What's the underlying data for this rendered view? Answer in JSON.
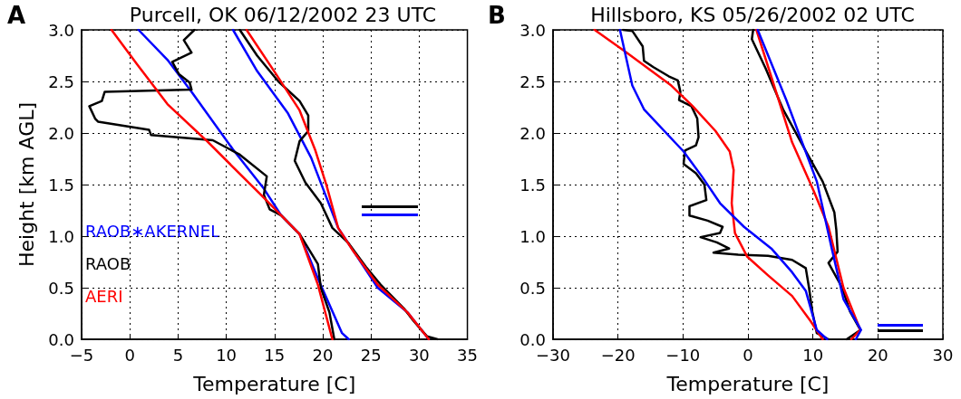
{
  "chart_data": [
    {
      "type": "line",
      "title": "Purcell, OK 06/12/2002 23 UTC",
      "xlabel": "Temperature [C]",
      "ylabel": "Height [km AGL]",
      "annotations": [
        "A"
      ],
      "xlim": [
        -5,
        35
      ],
      "xticks": [
        {
          "value": -5,
          "label": "−5"
        },
        0,
        5,
        10,
        15,
        20,
        25,
        30,
        35
      ],
      "ylim": [
        0,
        3
      ],
      "yticks": [
        {
          "value": 0,
          "label": "0.0"
        },
        0.5,
        {
          "value": 1,
          "label": "1.0"
        },
        1.5,
        {
          "value": 2,
          "label": "2.0"
        },
        2.5,
        {
          "value": 3,
          "label": "3.0"
        }
      ],
      "grid": true,
      "legend": "left",
      "marker": "none",
      "line_style": "solid",
      "series": [
        {
          "name": "RAOB∗AKERNEL",
          "color": "#0000ff",
          "x": [
            10.7,
            13.2,
            16.4,
            18.8,
            21.6,
            25.7,
            28.8,
            31.0
          ],
          "values": [
            3.0,
            2.6,
            2.19,
            1.76,
            1.08,
            0.5,
            0.26,
            0.0
          ]
        },
        {
          "color": "#0000ff",
          "x": [
            0.9,
            3.9,
            6.4,
            10.7,
            13.9,
            15.7,
            17.6,
            19.5,
            22.0,
            22.7
          ],
          "values": [
            3.0,
            2.71,
            2.4,
            1.84,
            1.46,
            1.2,
            1.02,
            0.59,
            0.06,
            0.0
          ]
        },
        {
          "name": "RAOB",
          "color": "#000000",
          "x": [
            11.4,
            13.2,
            15.4,
            17.6,
            18.5,
            18.5,
            17.6,
            17.1,
            18.2,
            19.8,
            21.0,
            22.6,
            24.5,
            26.0,
            28.5,
            29.4,
            30.8,
            31.9
          ],
          "values": [
            3.0,
            2.75,
            2.5,
            2.31,
            2.17,
            2.02,
            1.92,
            1.73,
            1.52,
            1.32,
            1.08,
            0.94,
            0.7,
            0.53,
            0.29,
            0.18,
            0.03,
            0.0
          ]
        },
        {
          "color": "#000000",
          "x": [
            6.7,
            5.6,
            6.4,
            4.4,
            5.1,
            6.2,
            6.4,
            -2.6,
            -2.9,
            -4.2,
            -3.6,
            -3.3,
            2.0,
            2.2,
            8.6,
            11.4,
            14.2,
            13.9,
            14.5,
            15.7,
            17.6,
            19.5,
            19.8,
            20.7,
            21.2
          ],
          "values": [
            3.0,
            2.9,
            2.78,
            2.69,
            2.57,
            2.49,
            2.42,
            2.4,
            2.31,
            2.26,
            2.14,
            2.11,
            2.03,
            1.98,
            1.93,
            1.79,
            1.58,
            1.4,
            1.26,
            1.2,
            1.02,
            0.73,
            0.5,
            0.26,
            0.0
          ]
        },
        {
          "name": "AERI",
          "color": "#ff0000",
          "x": [
            12.1,
            15.1,
            17.6,
            19.2,
            20.4,
            21.6,
            23.2,
            25.7,
            28.8,
            31.0
          ],
          "values": [
            3.0,
            2.58,
            2.22,
            1.84,
            1.49,
            1.08,
            0.85,
            0.53,
            0.26,
            0.0
          ]
        },
        {
          "color": "#ff0000",
          "x": [
            -1.9,
            0.8,
            3.9,
            7.9,
            13.6,
            15.7,
            17.6,
            19.5,
            21.0
          ],
          "values": [
            3.0,
            2.66,
            2.28,
            1.93,
            1.4,
            1.2,
            1.02,
            0.53,
            0.0
          ]
        }
      ]
    },
    {
      "type": "line",
      "title": "Hillsboro, KS 05/26/2002 02 UTC",
      "xlabel": "Temperature [C]",
      "annotations": [
        "B"
      ],
      "xlim": [
        -30,
        30
      ],
      "xticks": [
        {
          "value": -30,
          "label": "−30"
        },
        {
          "value": -20,
          "label": "−20"
        },
        {
          "value": -10,
          "label": "−10"
        },
        0,
        10,
        20,
        30
      ],
      "ylim": [
        0,
        3
      ],
      "yticks": [
        {
          "value": 0,
          "label": "0.0"
        },
        0.5,
        {
          "value": 1,
          "label": "1.0"
        },
        1.5,
        {
          "value": 2,
          "label": "2.0"
        },
        2.5,
        {
          "value": 3,
          "label": "3.0"
        }
      ],
      "grid": true,
      "marker": "none",
      "line_style": "solid",
      "series": [
        {
          "color": "#000000",
          "x": [
            -19.2,
            -17.8,
            -16.2,
            -16.0,
            -14.6,
            -12.2,
            -10.8,
            -10.4,
            -10.6,
            -8.7,
            -7.8,
            -7.6,
            -8.0,
            -9.7,
            -9.9,
            -8.0,
            -6.7,
            -6.4,
            -9.0,
            -9.0,
            -6.2,
            -3.9,
            -4.3,
            -7.3,
            -4.8,
            -2.9,
            -5.3,
            -1.5,
            3.1,
            6.8,
            8.9,
            9.4,
            9.9,
            10.6,
            12.4
          ],
          "values": [
            3.0,
            2.99,
            2.84,
            2.7,
            2.64,
            2.55,
            2.51,
            2.4,
            2.32,
            2.26,
            2.14,
            1.96,
            1.88,
            1.83,
            1.7,
            1.61,
            1.5,
            1.35,
            1.29,
            1.2,
            1.15,
            1.09,
            1.03,
            0.99,
            0.94,
            0.88,
            0.84,
            0.82,
            0.81,
            0.77,
            0.69,
            0.5,
            0.27,
            0.06,
            0.0
          ]
        },
        {
          "color": "#000000",
          "x": [
            0.8,
            0.6,
            2.7,
            5.4,
            9.2,
            11.5,
            13.3,
            13.6,
            13.8,
            12.4,
            14.5,
            15.7,
            17.3,
            15.2
          ],
          "values": [
            3.0,
            2.91,
            2.63,
            2.23,
            1.79,
            1.53,
            1.23,
            1.06,
            0.85,
            0.74,
            0.5,
            0.27,
            0.09,
            0.0
          ]
        },
        {
          "color": "#ff0000",
          "x": [
            -23.6,
            -18.7,
            -11.8,
            -8.5,
            -5.0,
            -2.8,
            -2.2,
            -2.5,
            -2.0,
            -0.1,
            3.1,
            6.8,
            9.6,
            11.5
          ],
          "values": [
            3.0,
            2.78,
            2.46,
            2.26,
            2.02,
            1.82,
            1.64,
            1.32,
            1.03,
            0.8,
            0.62,
            0.42,
            0.18,
            0.0
          ]
        },
        {
          "color": "#ff0000",
          "x": [
            1.3,
            6.8,
            10.1,
            12.4,
            14.7,
            17.3,
            15.9
          ],
          "values": [
            3.0,
            1.91,
            1.44,
            1.09,
            0.5,
            0.09,
            0.0
          ]
        },
        {
          "color": "#0000ff",
          "x": [
            -19.7,
            -17.8,
            -16.0,
            -9.9,
            -7.1,
            -4.3,
            -0.6,
            3.6,
            6.8,
            8.9,
            10.6,
            12.2
          ],
          "values": [
            3.0,
            2.46,
            2.23,
            1.82,
            1.58,
            1.32,
            1.09,
            0.88,
            0.65,
            0.47,
            0.09,
            0.0
          ]
        },
        {
          "color": "#0000ff",
          "x": [
            1.5,
            5.9,
            10.6,
            12.9,
            14.7,
            17.4,
            16.6
          ],
          "values": [
            3.0,
            2.32,
            1.53,
            0.88,
            0.39,
            0.09,
            0.0
          ]
        }
      ]
    }
  ]
}
